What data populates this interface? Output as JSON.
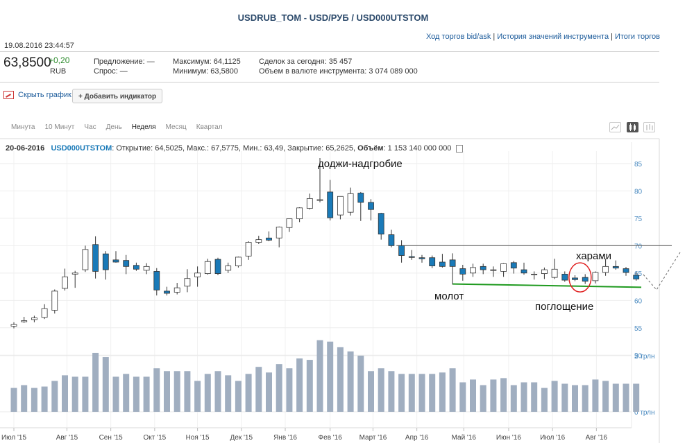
{
  "header": {
    "title": "USDRUB_TOM - USD/РУБ / USD000UTSTOM",
    "datetime": "19.08.2016 23:44:57",
    "links": [
      "Ход торгов bid/ask",
      "История значений инструмента",
      "Итоги торгов"
    ]
  },
  "quote": {
    "price": "63,8500",
    "change": "+0,20",
    "currency": "RUB",
    "offer_label": "Предложение:",
    "offer_value": "—",
    "bid_label": "Спрос:",
    "bid_value": "—",
    "max_label": "Максимум:",
    "max_value": "64,1125",
    "min_label": "Минимум:",
    "min_value": "63,5800",
    "deals_label": "Сделок за сегодня:",
    "deals_value": "35 457",
    "volume_label": "Объем в валюте инструмента:",
    "volume_value": "3 074 089 000"
  },
  "toolbar": {
    "hide_chart": "Скрыть график",
    "add_indicator": "+ Добавить индикатор",
    "periods": [
      "Минута",
      "10 Минут",
      "Час",
      "День",
      "Неделя",
      "Месяц",
      "Квартал"
    ],
    "active_period": "Неделя",
    "chart_types": [
      "line-chart-icon",
      "candle-chart-icon",
      "bar-chart-icon"
    ],
    "active_chart_type": "candle-chart-icon"
  },
  "info_line": {
    "date": "20-06-2016",
    "ticker": "USD000UTSTOM",
    "text": ": Открытие: 64,5025, Макс.: 67,5775, Мин.: 63,49, Закрытие: 65,2625, ",
    "volume_label": "Объём",
    "volume_value": ": 1 153 140 000 000"
  },
  "chart_data": {
    "type": "candlestick",
    "y_ticks": [
      50,
      55,
      60,
      65,
      70,
      75,
      80,
      85
    ],
    "ylim": [
      47,
      86.5
    ],
    "volume_ticks": [
      "0 трлн",
      "2 трлн"
    ],
    "x_ticks": [
      "Июл '15",
      "Авг '15",
      "Сен '15",
      "Окт '15",
      "Ноя '15",
      "Дек '15",
      "Янв '16",
      "Фев '16",
      "Март '16",
      "Апр '16",
      "Май '16",
      "Июн '16",
      "Июл '16",
      "Авг '16"
    ],
    "x_tick_weeks": [
      0,
      5.2,
      9.5,
      13.8,
      18,
      22.3,
      26.6,
      31,
      35.2,
      39.5,
      44.1,
      48.5,
      52.8,
      57.1
    ],
    "candles": [
      {
        "o": 55.3,
        "h": 56.0,
        "l": 54.9,
        "c": 55.6
      },
      {
        "o": 56.1,
        "h": 57.0,
        "l": 55.9,
        "c": 56.3
      },
      {
        "o": 56.5,
        "h": 57.2,
        "l": 56.0,
        "c": 56.8
      },
      {
        "o": 56.9,
        "h": 59.3,
        "l": 56.6,
        "c": 58.5
      },
      {
        "o": 58.2,
        "h": 62.0,
        "l": 57.6,
        "c": 61.7
      },
      {
        "o": 62.2,
        "h": 65.8,
        "l": 61.8,
        "c": 64.3
      },
      {
        "o": 64.8,
        "h": 65.4,
        "l": 62.3,
        "c": 65.0
      },
      {
        "o": 65.6,
        "h": 70.0,
        "l": 65.2,
        "c": 69.3
      },
      {
        "o": 70.2,
        "h": 71.7,
        "l": 64.0,
        "c": 65.3
      },
      {
        "o": 68.5,
        "h": 69.0,
        "l": 63.8,
        "c": 65.6
      },
      {
        "o": 67.4,
        "h": 69.0,
        "l": 66.9,
        "c": 67.0
      },
      {
        "o": 67.3,
        "h": 68.3,
        "l": 64.8,
        "c": 66.2
      },
      {
        "o": 66.4,
        "h": 66.9,
        "l": 65.4,
        "c": 65.7
      },
      {
        "o": 65.5,
        "h": 66.8,
        "l": 64.8,
        "c": 66.2
      },
      {
        "o": 65.3,
        "h": 65.9,
        "l": 60.9,
        "c": 61.9
      },
      {
        "o": 61.7,
        "h": 62.5,
        "l": 60.9,
        "c": 61.3
      },
      {
        "o": 61.5,
        "h": 63.2,
        "l": 61.1,
        "c": 62.3
      },
      {
        "o": 62.6,
        "h": 65.7,
        "l": 61.5,
        "c": 64.0
      },
      {
        "o": 64.3,
        "h": 66.2,
        "l": 62.5,
        "c": 65.0
      },
      {
        "o": 64.9,
        "h": 67.6,
        "l": 64.7,
        "c": 67.1
      },
      {
        "o": 67.5,
        "h": 67.8,
        "l": 64.6,
        "c": 64.9
      },
      {
        "o": 65.5,
        "h": 66.9,
        "l": 65.0,
        "c": 66.3
      },
      {
        "o": 66.3,
        "h": 68.0,
        "l": 66.0,
        "c": 67.9
      },
      {
        "o": 68.1,
        "h": 70.8,
        "l": 67.4,
        "c": 70.6
      },
      {
        "o": 70.6,
        "h": 71.8,
        "l": 70.3,
        "c": 71.1
      },
      {
        "o": 71.4,
        "h": 72.6,
        "l": 70.8,
        "c": 71.0
      },
      {
        "o": 71.4,
        "h": 73.5,
        "l": 69.7,
        "c": 73.4
      },
      {
        "o": 73.3,
        "h": 74.8,
        "l": 72.5,
        "c": 74.9
      },
      {
        "o": 74.9,
        "h": 77.0,
        "l": 74.3,
        "c": 76.9
      },
      {
        "o": 76.8,
        "h": 79.5,
        "l": 76.6,
        "c": 78.6
      },
      {
        "o": 78.3,
        "h": 86.0,
        "l": 77.9,
        "c": 78.4
      },
      {
        "o": 79.8,
        "h": 82.0,
        "l": 74.6,
        "c": 75.1
      },
      {
        "o": 75.6,
        "h": 79.0,
        "l": 74.8,
        "c": 79.0
      },
      {
        "o": 76.1,
        "h": 80.6,
        "l": 75.5,
        "c": 79.5
      },
      {
        "o": 79.6,
        "h": 79.8,
        "l": 74.5,
        "c": 77.9
      },
      {
        "o": 77.9,
        "h": 78.5,
        "l": 74.6,
        "c": 76.6
      },
      {
        "o": 75.9,
        "h": 76.0,
        "l": 71.1,
        "c": 72.1
      },
      {
        "o": 72.0,
        "h": 72.9,
        "l": 69.7,
        "c": 70.0
      },
      {
        "o": 70.0,
        "h": 71.0,
        "l": 66.9,
        "c": 68.2
      },
      {
        "o": 68.0,
        "h": 69.2,
        "l": 67.4,
        "c": 67.9
      },
      {
        "o": 67.8,
        "h": 68.3,
        "l": 66.9,
        "c": 67.6
      },
      {
        "o": 67.8,
        "h": 68.2,
        "l": 65.9,
        "c": 66.3
      },
      {
        "o": 67.0,
        "h": 68.5,
        "l": 66.0,
        "c": 66.2
      },
      {
        "o": 67.4,
        "h": 68.6,
        "l": 62.9,
        "c": 66.2
      },
      {
        "o": 65.8,
        "h": 66.5,
        "l": 63.6,
        "c": 64.8
      },
      {
        "o": 65.0,
        "h": 66.7,
        "l": 64.3,
        "c": 66.0
      },
      {
        "o": 66.2,
        "h": 66.7,
        "l": 64.8,
        "c": 65.6
      },
      {
        "o": 65.5,
        "h": 66.2,
        "l": 64.3,
        "c": 65.6
      },
      {
        "o": 65.3,
        "h": 66.8,
        "l": 64.3,
        "c": 66.7
      },
      {
        "o": 66.9,
        "h": 67.2,
        "l": 64.9,
        "c": 65.9
      },
      {
        "o": 65.6,
        "h": 66.9,
        "l": 64.7,
        "c": 65.0
      },
      {
        "o": 64.8,
        "h": 65.3,
        "l": 63.8,
        "c": 64.8
      },
      {
        "o": 64.9,
        "h": 66.0,
        "l": 63.9,
        "c": 65.6
      },
      {
        "o": 64.2,
        "h": 67.6,
        "l": 63.9,
        "c": 65.7
      },
      {
        "o": 64.8,
        "h": 65.3,
        "l": 63.4,
        "c": 63.7
      },
      {
        "o": 64.1,
        "h": 64.6,
        "l": 63.5,
        "c": 63.8
      },
      {
        "o": 64.2,
        "h": 64.8,
        "l": 63.0,
        "c": 63.5
      },
      {
        "o": 63.6,
        "h": 65.3,
        "l": 63.1,
        "c": 65.1
      },
      {
        "o": 65.1,
        "h": 67.6,
        "l": 64.5,
        "c": 66.2
      },
      {
        "o": 66.2,
        "h": 67.3,
        "l": 65.6,
        "c": 65.9
      },
      {
        "o": 65.8,
        "h": 66.1,
        "l": 64.5,
        "c": 65.1
      },
      {
        "o": 64.6,
        "h": 65.2,
        "l": 63.6,
        "c": 63.9
      }
    ],
    "volumes": [
      0.85,
      0.95,
      0.85,
      0.9,
      1.1,
      1.3,
      1.25,
      1.25,
      2.1,
      1.95,
      1.25,
      1.35,
      1.25,
      1.25,
      1.55,
      1.45,
      1.45,
      1.45,
      1.1,
      1.35,
      1.45,
      1.3,
      1.1,
      1.35,
      1.6,
      1.4,
      1.7,
      1.55,
      1.9,
      1.85,
      2.55,
      2.5,
      2.3,
      2.15,
      2.0,
      1.45,
      1.55,
      1.45,
      1.35,
      1.35,
      1.35,
      1.35,
      1.4,
      1.55,
      1.05,
      1.15,
      0.95,
      1.15,
      1.2,
      0.95,
      1.05,
      1.05,
      0.85,
      1.1,
      1.0,
      0.95,
      0.95,
      1.15,
      1.1,
      1.0,
      1.0,
      1.0
    ],
    "annotations": {
      "doji": "доджи-надгробие",
      "hammer": "молот",
      "engulfing": "поглощение",
      "harami": "харами"
    },
    "resistance_level": 70.0,
    "support_from": {
      "week": 43,
      "value": 63.0
    },
    "support_to": {
      "week": 61.5,
      "value": 62.4
    },
    "colors": {
      "up": "#ffffff",
      "down": "#1a7ab8",
      "volume": "#a0aec0",
      "support": "#1f9a1f",
      "resistance": "#666666",
      "circle": "#e02020"
    }
  }
}
